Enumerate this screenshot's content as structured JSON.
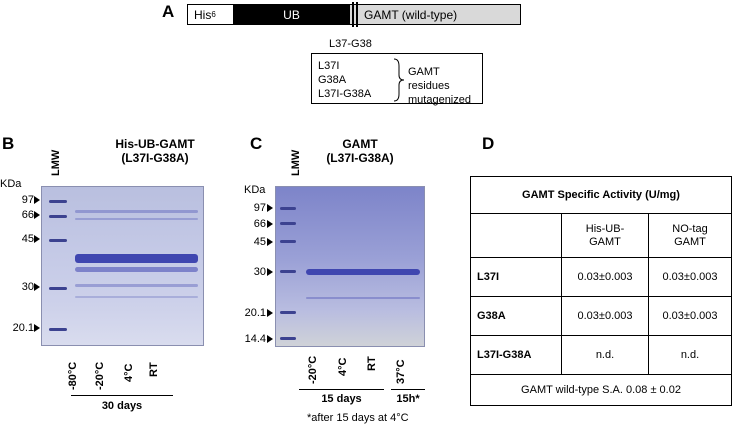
{
  "panels": {
    "a": "A",
    "b": "B",
    "c": "C",
    "d": "D"
  },
  "panel_a": {
    "his": "His",
    "his_sub": "6",
    "ub": "UB",
    "gamt": "GAMT (wild-type)",
    "site": "L37-G38",
    "mutants": [
      "L37I",
      "G38A",
      "L37I-G38A"
    ],
    "bracket_note": [
      "GAMT residues",
      "mutagenized"
    ]
  },
  "panel_b": {
    "title_line1": "His-UB-GAMT",
    "title_line2": "(L37I-G38A)",
    "kda_label": "KDa",
    "markers": [
      "97",
      "66",
      "45",
      "30",
      "20.1"
    ],
    "lmw": "LMW",
    "lanes": [
      "-80°C",
      "-20°C",
      "4°C",
      "RT"
    ],
    "footer": "30 days"
  },
  "panel_c": {
    "title_line1": "GAMT",
    "title_line2": "(L37I-G38A)",
    "kda_label": "KDa",
    "markers": [
      "97",
      "66",
      "45",
      "30",
      "20.1",
      "14.4"
    ],
    "lmw": "LMW",
    "lanes": [
      "-20°C",
      "4°C",
      "RT",
      "37°C"
    ],
    "footer_left": "15 days",
    "footer_right": "15h*",
    "note": "*after 15 days at 4°C"
  },
  "panel_d": {
    "title": "GAMT Specific Activity (U/mg)",
    "col1": "His-UB-\nGAMT",
    "col2": "NO-tag\nGAMT",
    "rows": [
      {
        "label": "L37I",
        "v1": "0.03±0.003",
        "v2": "0.03±0.003"
      },
      {
        "label": "G38A",
        "v1": "0.03±0.003",
        "v2": "0.03±0.003"
      },
      {
        "label": "L37I-G38A",
        "v1": "n.d.",
        "v2": "n.d."
      }
    ],
    "footer": "GAMT wild-type S.A. 0.08 ± 0.02"
  },
  "colors": {
    "ub_box": "#000000",
    "gamt_box": "#d9d9d9",
    "band": "#3f46b0"
  }
}
